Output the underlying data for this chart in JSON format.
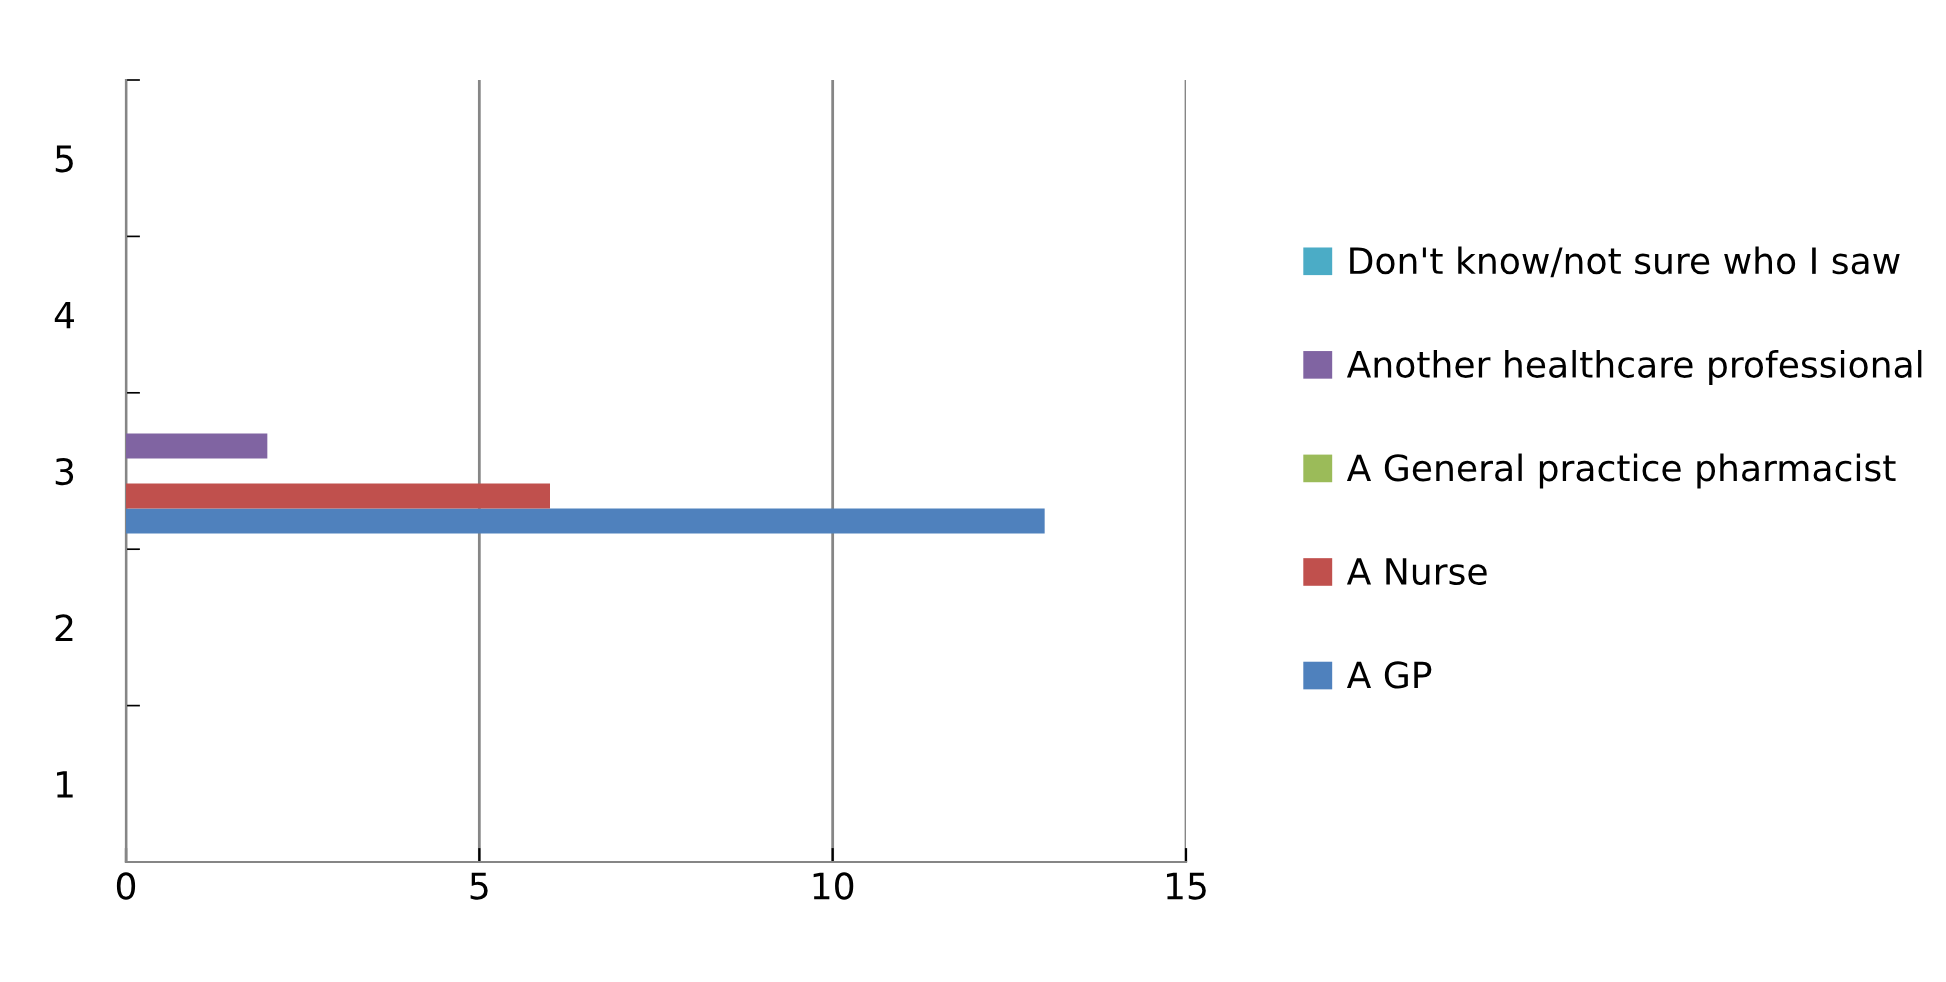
{
  "chart_data": {
    "type": "bar",
    "orientation": "horizontal",
    "categories": [
      "5",
      "4",
      "3",
      "2",
      "1"
    ],
    "series": [
      {
        "name": "A GP",
        "color": "#4f81bd",
        "values": [
          null,
          null,
          13,
          null,
          null
        ]
      },
      {
        "name": "A Nurse",
        "color": "#c0504d",
        "values": [
          null,
          null,
          6,
          null,
          null
        ]
      },
      {
        "name": "A General practice pharmacist",
        "color": "#9bbb59",
        "values": [
          null,
          null,
          null,
          null,
          null
        ]
      },
      {
        "name": "Another healthcare professional",
        "color": "#8064a2",
        "values": [
          null,
          null,
          2,
          null,
          null
        ]
      },
      {
        "name": "Don't know/not sure who I saw",
        "color": "#4bacc6",
        "values": [
          null,
          null,
          null,
          null,
          null
        ]
      }
    ],
    "xlim": [
      0,
      15
    ],
    "xticks": [
      0,
      5,
      10,
      15
    ],
    "grid": "x",
    "legend": "right"
  }
}
